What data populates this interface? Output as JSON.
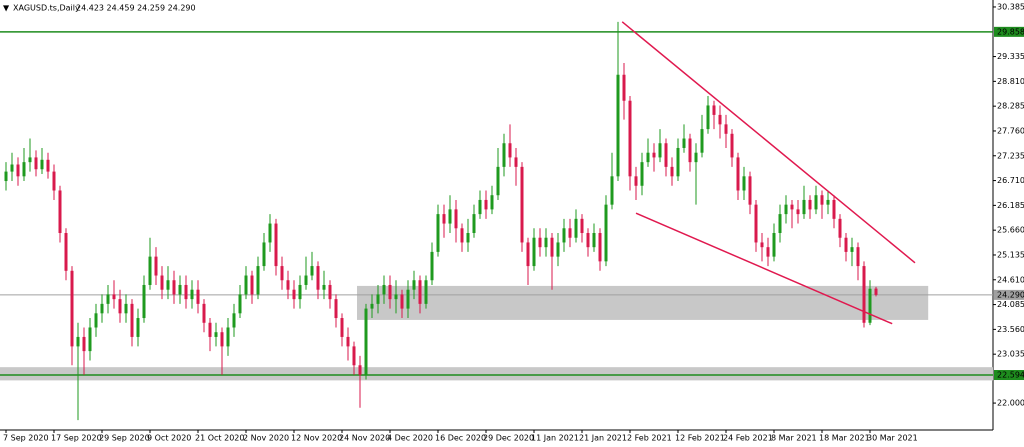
{
  "chart_data": {
    "type": "candlestick",
    "symbol": "XAGUSD.ts,Daily",
    "quote": "24.423 24.459 24.259 24.290",
    "up_color": "#1f9a1f",
    "down_color": "#d81a4c",
    "xlim": [
      -1,
      164.5
    ],
    "ylim": [
      21.43,
      30.49
    ],
    "yticks": [
      30.385,
      29.335,
      {
        "value": 28.81,
        "label": "28.810"
      },
      28.285,
      {
        "value": 27.76,
        "label": "27.760"
      },
      27.235,
      {
        "value": 26.71,
        "label": "26.710"
      },
      26.185,
      {
        "value": 25.66,
        "label": "25.660"
      },
      25.135,
      {
        "value": 24.61,
        "label": "24.610"
      },
      24.085,
      {
        "value": 23.56,
        "label": "23.560"
      },
      23.035,
      {
        "value": 22,
        "label": "22.000"
      }
    ],
    "categories": [
      "7 Sep 2020",
      null,
      null,
      null,
      null,
      null,
      null,
      null,
      "17 Sep 2020",
      null,
      null,
      null,
      null,
      null,
      null,
      null,
      "29 Sep 2020",
      null,
      null,
      null,
      null,
      null,
      null,
      null,
      "9 Oct 2020",
      null,
      null,
      null,
      null,
      null,
      null,
      null,
      "21 Oct 2020",
      null,
      null,
      null,
      null,
      null,
      null,
      null,
      "2 Nov 2020",
      null,
      null,
      null,
      null,
      null,
      null,
      null,
      "12 Nov 2020",
      null,
      null,
      null,
      null,
      null,
      null,
      null,
      "24 Nov 2020",
      null,
      null,
      null,
      null,
      null,
      null,
      null,
      "4 Dec 2020",
      null,
      null,
      null,
      null,
      null,
      null,
      null,
      "16 Dec 2020",
      null,
      null,
      null,
      null,
      null,
      null,
      null,
      "29 Dec 2020",
      null,
      null,
      null,
      null,
      null,
      null,
      null,
      "11 Jan 2021",
      null,
      null,
      null,
      null,
      null,
      null,
      null,
      "21 Jan 2021",
      null,
      null,
      null,
      null,
      null,
      null,
      null,
      "2 Feb 2021",
      null,
      null,
      null,
      null,
      null,
      null,
      null,
      "12 Feb 2021",
      null,
      null,
      null,
      null,
      null,
      null,
      null,
      "24 Feb 2021",
      null,
      null,
      null,
      null,
      null,
      null,
      null,
      "8 Mar 2021",
      null,
      null,
      null,
      null,
      null,
      null,
      null,
      "18 Mar 2021",
      null,
      null,
      null,
      null,
      null,
      null,
      null,
      "30 Mar 2021",
      null
    ],
    "open": [
      26.7,
      26.9,
      27.05,
      26.8,
      27.1,
      27.2,
      26.95,
      27.15,
      26.9,
      26.5,
      25.6,
      24.8,
      23.2,
      23.4,
      23.1,
      23.6,
      23.9,
      24.1,
      24.3,
      24.2,
      23.9,
      24.1,
      23.4,
      23.8,
      24.5,
      25.1,
      24.7,
      24.4,
      24.6,
      24.3,
      24.5,
      24.2,
      24.4,
      24.1,
      23.7,
      23.4,
      23.5,
      23.2,
      23.6,
      23.9,
      24.3,
      24.7,
      24.3,
      24.9,
      25.4,
      25.8,
      24.9,
      24.6,
      24.4,
      24.2,
      24.5,
      24.7,
      24.9,
      24.4,
      24.5,
      24.2,
      23.8,
      23.4,
      23.2,
      22.8,
      22.6,
      24.0,
      24.1,
      24.3,
      24.5,
      24.2,
      24.3,
      24.0,
      24.4,
      24.6,
      24.1,
      24.6,
      25.2,
      26.0,
      25.8,
      26.1,
      25.7,
      25.4,
      25.6,
      26.0,
      26.3,
      26.1,
      26.4,
      27.0,
      27.5,
      27.2,
      27.0,
      25.4,
      24.9,
      25.5,
      25.3,
      25.5,
      25.1,
      25.4,
      25.7,
      25.5,
      25.9,
      25.6,
      25.3,
      25.6,
      25.0,
      26.2,
      26.8,
      28.95,
      28.4,
      26.8,
      26.6,
      27.1,
      27.3,
      27.2,
      27.5,
      27.0,
      26.8,
      27.4,
      27.6,
      27.1,
      27.3,
      27.8,
      28.3,
      28.1,
      27.9,
      27.7,
      27.2,
      26.5,
      26.8,
      26.2,
      25.4,
      25.3,
      25.1,
      25.6,
      26.0,
      26.2,
      26.1,
      26.0,
      26.3,
      26.1,
      26.4,
      26.2,
      26.3,
      25.9,
      25.5,
      25.2,
      25.3,
      24.9,
      23.7,
      24.423
    ],
    "high": [
      27.1,
      27.3,
      27.2,
      27.4,
      27.6,
      27.35,
      27.4,
      27.3,
      27.05,
      26.6,
      25.7,
      24.9,
      23.7,
      23.6,
      23.8,
      24.1,
      24.3,
      24.5,
      24.6,
      24.4,
      24.3,
      24.2,
      24.0,
      24.7,
      25.5,
      25.3,
      24.9,
      24.9,
      24.8,
      24.7,
      24.7,
      24.6,
      24.6,
      24.2,
      23.8,
      23.7,
      23.6,
      23.8,
      24.1,
      24.5,
      24.9,
      24.8,
      25.1,
      25.6,
      26.0,
      25.9,
      25.1,
      24.8,
      24.6,
      24.7,
      25.1,
      25.2,
      25.0,
      24.8,
      24.6,
      24.3,
      23.9,
      23.6,
      23.3,
      23.0,
      24.1,
      24.3,
      24.5,
      24.7,
      24.7,
      24.6,
      24.4,
      24.6,
      24.8,
      24.7,
      24.7,
      25.4,
      26.2,
      26.2,
      26.4,
      26.3,
      25.8,
      25.9,
      26.2,
      26.5,
      26.5,
      26.6,
      27.4,
      27.7,
      27.9,
      27.4,
      27.1,
      25.5,
      25.7,
      25.7,
      25.7,
      25.6,
      25.6,
      25.9,
      25.9,
      26.1,
      26.0,
      25.7,
      25.8,
      25.7,
      26.4,
      27.3,
      30.07,
      29.2,
      28.5,
      27.0,
      27.3,
      27.6,
      27.5,
      27.8,
      27.6,
      27.2,
      27.6,
      27.9,
      27.7,
      27.5,
      28.1,
      28.5,
      28.4,
      28.3,
      28.1,
      27.8,
      27.3,
      27.0,
      26.9,
      26.3,
      25.6,
      25.5,
      25.8,
      26.2,
      26.4,
      26.3,
      26.3,
      26.6,
      26.4,
      26.6,
      26.5,
      26.5,
      26.4,
      26.0,
      25.6,
      25.5,
      25.4,
      25.0,
      24.6,
      24.459
    ],
    "low": [
      26.5,
      26.7,
      26.6,
      26.7,
      26.9,
      26.8,
      26.85,
      26.75,
      26.3,
      25.4,
      24.6,
      22.8,
      21.64,
      22.6,
      22.9,
      23.4,
      23.7,
      23.9,
      24.0,
      23.7,
      23.7,
      23.2,
      23.2,
      23.7,
      24.4,
      24.5,
      24.2,
      24.2,
      24.1,
      24.1,
      24.0,
      24.0,
      23.9,
      23.5,
      23.1,
      23.2,
      22.6,
      23.0,
      23.4,
      23.8,
      24.2,
      24.1,
      24.2,
      24.8,
      25.2,
      24.7,
      24.4,
      24.2,
      24.0,
      24.0,
      24.4,
      24.6,
      24.2,
      24.2,
      24.0,
      23.6,
      23.2,
      22.9,
      22.6,
      21.9,
      22.5,
      23.8,
      23.9,
      24.1,
      24.0,
      23.9,
      23.8,
      23.8,
      24.2,
      23.9,
      24.0,
      24.5,
      25.1,
      25.5,
      25.6,
      25.4,
      25.2,
      25.2,
      25.5,
      25.9,
      25.9,
      26.0,
      26.3,
      26.8,
      27.0,
      26.6,
      25.2,
      24.5,
      24.8,
      25.1,
      25.1,
      24.4,
      24.9,
      25.2,
      25.3,
      25.4,
      25.4,
      25.1,
      25.2,
      24.8,
      24.9,
      26.1,
      26.7,
      28.0,
      26.5,
      26.3,
      26.4,
      27.0,
      26.9,
      27.1,
      26.8,
      26.6,
      26.7,
      27.3,
      26.9,
      26.2,
      27.2,
      27.7,
      27.8,
      27.6,
      27.4,
      27.0,
      26.3,
      26.3,
      26.0,
      25.2,
      25.0,
      24.9,
      25.0,
      25.4,
      25.8,
      25.7,
      25.8,
      25.9,
      25.9,
      26.0,
      25.9,
      26.0,
      25.7,
      25.3,
      25.0,
      24.9,
      24.6,
      23.6,
      23.65,
      24.259
    ],
    "close": [
      26.9,
      27.05,
      26.8,
      27.1,
      27.2,
      26.95,
      27.15,
      26.9,
      26.5,
      25.6,
      24.8,
      23.2,
      23.4,
      23.1,
      23.6,
      23.9,
      24.1,
      24.3,
      24.2,
      23.9,
      24.1,
      23.4,
      23.8,
      24.5,
      25.1,
      24.7,
      24.4,
      24.6,
      24.3,
      24.5,
      24.2,
      24.4,
      24.1,
      23.7,
      23.4,
      23.5,
      23.2,
      23.6,
      23.9,
      24.3,
      24.7,
      24.3,
      24.9,
      25.4,
      25.8,
      24.9,
      24.6,
      24.4,
      24.2,
      24.5,
      24.7,
      24.9,
      24.4,
      24.5,
      24.2,
      23.8,
      23.4,
      23.2,
      22.8,
      22.6,
      24.0,
      24.1,
      24.3,
      24.5,
      24.2,
      24.3,
      24.0,
      24.4,
      24.6,
      24.1,
      24.6,
      25.2,
      26.0,
      25.8,
      26.1,
      25.7,
      25.4,
      25.6,
      26.0,
      26.3,
      26.1,
      26.4,
      27.0,
      27.5,
      27.2,
      27.0,
      25.4,
      24.9,
      25.5,
      25.3,
      25.5,
      25.1,
      25.4,
      25.7,
      25.5,
      25.9,
      25.6,
      25.3,
      25.6,
      25.0,
      26.2,
      26.8,
      28.95,
      28.4,
      26.8,
      26.6,
      27.1,
      27.3,
      27.2,
      27.5,
      27.0,
      26.8,
      27.4,
      27.6,
      27.1,
      27.3,
      27.8,
      28.3,
      28.1,
      27.9,
      27.7,
      27.2,
      26.5,
      26.8,
      26.2,
      25.4,
      25.3,
      25.1,
      25.6,
      26.0,
      26.2,
      26.1,
      26.0,
      26.3,
      26.1,
      26.4,
      26.2,
      26.3,
      25.9,
      25.5,
      25.2,
      25.3,
      24.9,
      23.7,
      24.42,
      24.29
    ],
    "hlines": [
      {
        "value": 29.858,
        "label": "29.858",
        "color": "#1e8c1e"
      },
      {
        "value": 24.29,
        "label": "24.290",
        "color": "#a0a0a0"
      },
      {
        "value": 22.594,
        "label": "22.594",
        "color": "#1e8c1e"
      }
    ],
    "zones": [
      {
        "xlim": [
          58.5,
          153.7
        ],
        "ylim": [
          23.76,
          24.48
        ],
        "color": "#c8c8c8"
      },
      {
        "xlim": [
          -1,
          164.5
        ],
        "ylim": [
          22.48,
          22.76
        ],
        "color": "#c8c8c8"
      }
    ],
    "trendlines": [
      {
        "x": [
          102.7,
          151.5
        ],
        "y": [
          30.07,
          24.97
        ],
        "color": "#e0194f"
      },
      {
        "x": [
          105,
          147.7
        ],
        "y": [
          26.02,
          23.68
        ],
        "color": "#e0194f"
      }
    ]
  }
}
